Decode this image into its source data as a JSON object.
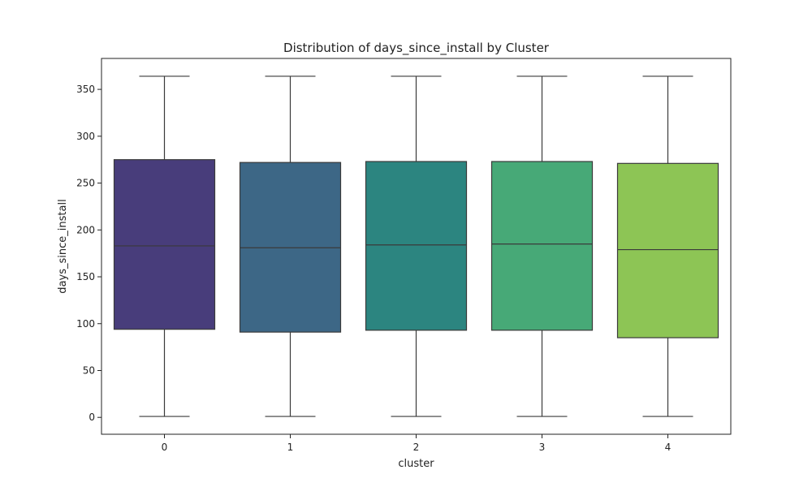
{
  "chart_data": {
    "type": "box",
    "title": "Distribution of days_since_install by Cluster",
    "xlabel": "cluster",
    "ylabel": "days_since_install",
    "categories": [
      "0",
      "1",
      "2",
      "3",
      "4"
    ],
    "ylim": [
      -18,
      383
    ],
    "yticks": [
      0,
      50,
      100,
      150,
      200,
      250,
      300,
      350
    ],
    "ytick_labels": [
      "0",
      "50",
      "100",
      "150",
      "200",
      "250",
      "300",
      "350"
    ],
    "grid": false,
    "boxes": [
      {
        "category": "0",
        "min": 1,
        "q1": 94,
        "median": 183,
        "q3": 275,
        "max": 364,
        "color": "#483d7b"
      },
      {
        "category": "1",
        "min": 1,
        "q1": 91,
        "median": 181,
        "q3": 272,
        "max": 364,
        "color": "#3d6786"
      },
      {
        "category": "2",
        "min": 1,
        "q1": 93,
        "median": 184,
        "q3": 273,
        "max": 364,
        "color": "#2c8580"
      },
      {
        "category": "3",
        "min": 1,
        "q1": 93,
        "median": 185,
        "q3": 273,
        "max": 364,
        "color": "#47a977"
      },
      {
        "category": "4",
        "min": 1,
        "q1": 85,
        "median": 179,
        "q3": 271,
        "max": 364,
        "color": "#8dc555"
      }
    ]
  }
}
